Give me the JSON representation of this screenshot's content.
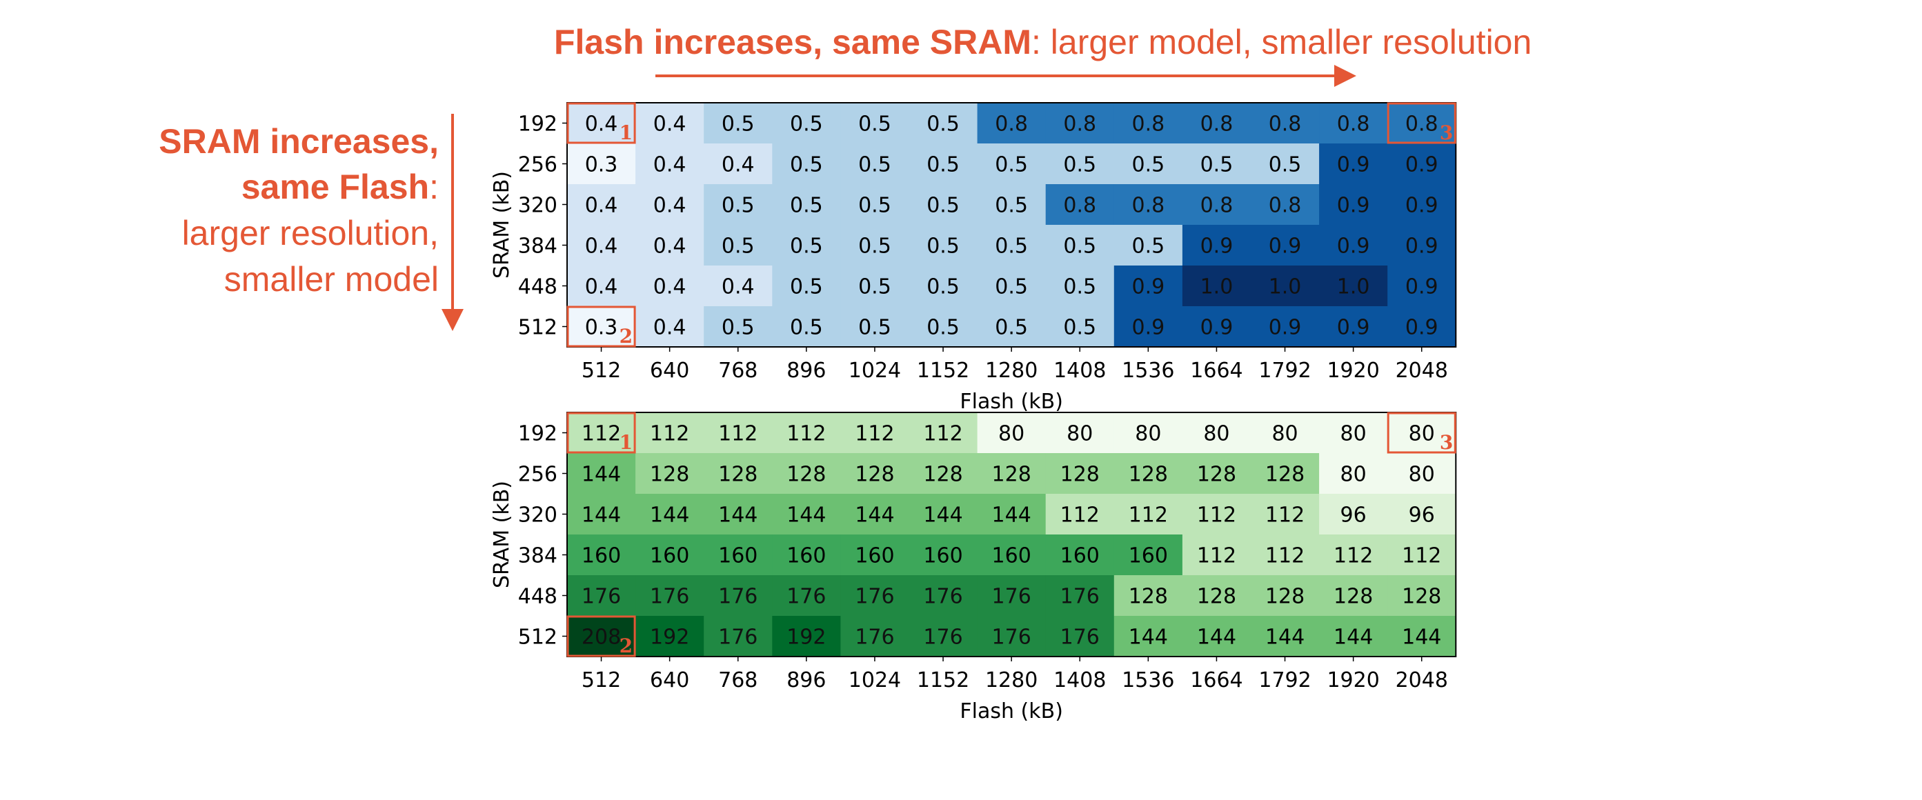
{
  "annotations": {
    "top_bold": "Flash increases, same SRAM",
    "top_regular": ": larger model, smaller resolution",
    "left_bold_line1": "SRAM increases,",
    "left_bold_line2": "same Flash",
    "left_colon": ":",
    "left_regular_line1": "larger resolution,",
    "left_regular_line2": "smaller model",
    "accent_color": "#e45735"
  },
  "corner_markers": [
    "1",
    "2",
    "3"
  ],
  "chart_data": [
    {
      "type": "heatmap",
      "colormap": "Blues",
      "xlabel": "Flash (kB)",
      "ylabel": "SRAM (kB)",
      "x": [
        "512",
        "640",
        "768",
        "896",
        "1024",
        "1152",
        "1280",
        "1408",
        "1536",
        "1664",
        "1792",
        "1920",
        "2048"
      ],
      "y": [
        "192",
        "256",
        "320",
        "384",
        "448",
        "512"
      ],
      "values": [
        [
          "0.4",
          "0.4",
          "0.5",
          "0.5",
          "0.5",
          "0.5",
          "0.8",
          "0.8",
          "0.8",
          "0.8",
          "0.8",
          "0.8",
          "0.8"
        ],
        [
          "0.3",
          "0.4",
          "0.4",
          "0.5",
          "0.5",
          "0.5",
          "0.5",
          "0.5",
          "0.5",
          "0.5",
          "0.5",
          "0.9",
          "0.9"
        ],
        [
          "0.4",
          "0.4",
          "0.5",
          "0.5",
          "0.5",
          "0.5",
          "0.5",
          "0.8",
          "0.8",
          "0.8",
          "0.8",
          "0.9",
          "0.9"
        ],
        [
          "0.4",
          "0.4",
          "0.5",
          "0.5",
          "0.5",
          "0.5",
          "0.5",
          "0.5",
          "0.5",
          "0.9",
          "0.9",
          "0.9",
          "0.9"
        ],
        [
          "0.4",
          "0.4",
          "0.4",
          "0.5",
          "0.5",
          "0.5",
          "0.5",
          "0.5",
          "0.9",
          "1.0",
          "1.0",
          "1.0",
          "0.9"
        ],
        [
          "0.3",
          "0.4",
          "0.5",
          "0.5",
          "0.5",
          "0.5",
          "0.5",
          "0.5",
          "0.9",
          "0.9",
          "0.9",
          "0.9",
          "0.9"
        ]
      ],
      "highlighted_cells": [
        {
          "row": 0,
          "col": 0,
          "marker": "1"
        },
        {
          "row": 5,
          "col": 0,
          "marker": "2"
        },
        {
          "row": 0,
          "col": 12,
          "marker": "3"
        }
      ]
    },
    {
      "type": "heatmap",
      "colormap": "Greens",
      "xlabel": "Flash (kB)",
      "ylabel": "SRAM (kB)",
      "x": [
        "512",
        "640",
        "768",
        "896",
        "1024",
        "1152",
        "1280",
        "1408",
        "1536",
        "1664",
        "1792",
        "1920",
        "2048"
      ],
      "y": [
        "192",
        "256",
        "320",
        "384",
        "448",
        "512"
      ],
      "values": [
        [
          "112",
          "112",
          "112",
          "112",
          "112",
          "112",
          "80",
          "80",
          "80",
          "80",
          "80",
          "80",
          "80"
        ],
        [
          "144",
          "128",
          "128",
          "128",
          "128",
          "128",
          "128",
          "128",
          "128",
          "128",
          "128",
          "80",
          "80"
        ],
        [
          "144",
          "144",
          "144",
          "144",
          "144",
          "144",
          "144",
          "112",
          "112",
          "112",
          "112",
          "96",
          "96"
        ],
        [
          "160",
          "160",
          "160",
          "160",
          "160",
          "160",
          "160",
          "160",
          "160",
          "112",
          "112",
          "112",
          "112"
        ],
        [
          "176",
          "176",
          "176",
          "176",
          "176",
          "176",
          "176",
          "176",
          "128",
          "128",
          "128",
          "128",
          "128"
        ],
        [
          "208",
          "192",
          "176",
          "192",
          "176",
          "176",
          "176",
          "176",
          "144",
          "144",
          "144",
          "144",
          "144"
        ]
      ],
      "highlighted_cells": [
        {
          "row": 0,
          "col": 0,
          "marker": "1"
        },
        {
          "row": 5,
          "col": 0,
          "marker": "2"
        },
        {
          "row": 0,
          "col": 12,
          "marker": "3"
        }
      ]
    }
  ]
}
